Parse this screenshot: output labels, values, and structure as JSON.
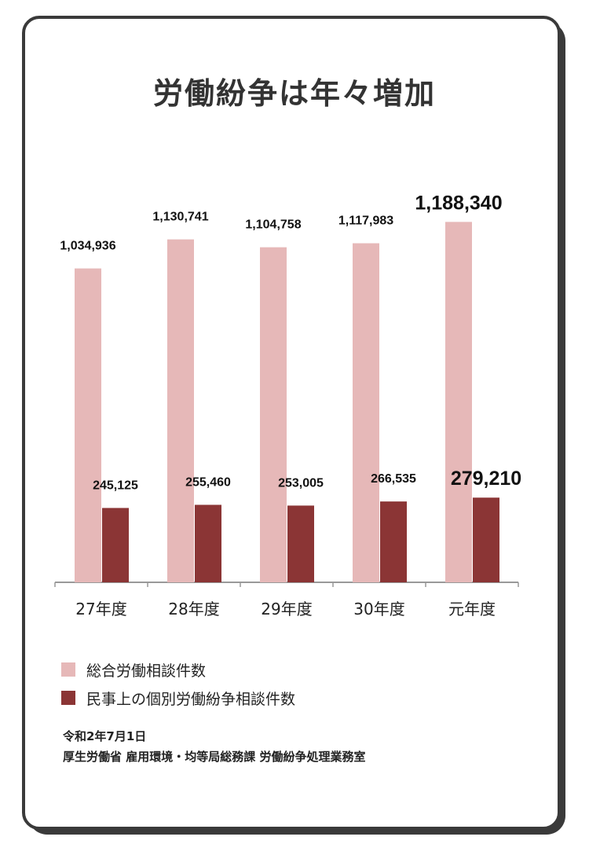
{
  "title": "労働紛争は年々増加",
  "chart_data": {
    "type": "bar",
    "categories": [
      "27年度",
      "28年度",
      "29年度",
      "30年度",
      "元年度"
    ],
    "series": [
      {
        "name": "総合労働相談件数",
        "values": [
          1034936,
          1130741,
          1104758,
          1117983,
          1188340
        ],
        "labels": [
          "1,034,936",
          "1,130,741",
          "1,104,758",
          "1,117,983",
          "1,188,340"
        ],
        "color": "#e6b8b8"
      },
      {
        "name": "民事上の個別労働紛争相談件数",
        "values": [
          245125,
          255460,
          253005,
          266535,
          279210
        ],
        "labels": [
          "245,125",
          "255,460",
          "253,005",
          "266,535",
          "279,210"
        ],
        "color": "#8b3535"
      }
    ],
    "ylim": [
      0,
      1350000
    ],
    "grid": false,
    "legend": "bottom-left"
  },
  "source": {
    "date": "令和2年7月1日",
    "org": "厚生労働省 雇用環境・均等局総務課 労働紛争処理業務室"
  }
}
